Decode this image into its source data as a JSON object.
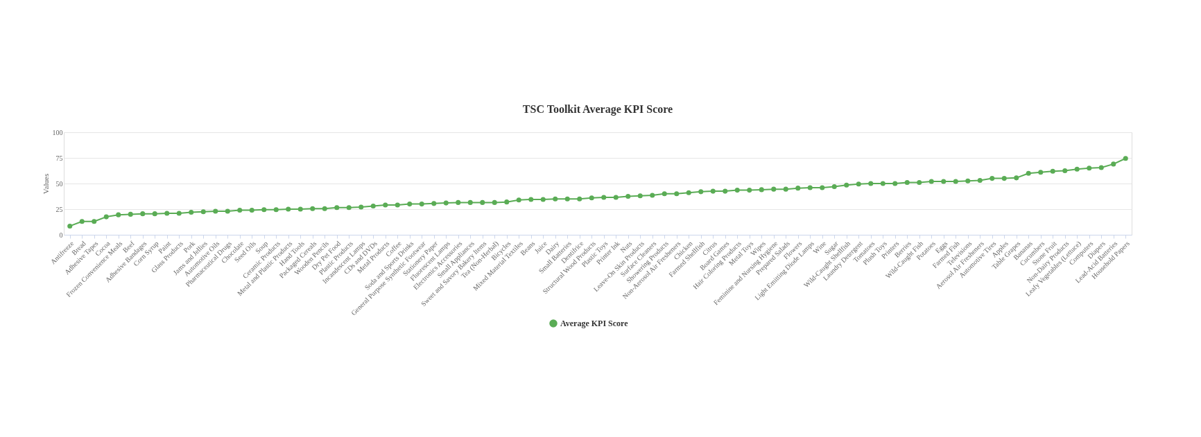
{
  "chart_data": {
    "type": "line",
    "title": "TSC Toolkit Average KPI Score",
    "ylabel": "Values",
    "categories": [
      "Antifreeze",
      "Bread",
      "Adhesive Tapes",
      "Cocoa",
      "Frozen Convenience Meals",
      "Beef",
      "Adhesive Bandages",
      "Corn Syrup",
      "Paint",
      "Glass Products",
      "Pork",
      "Jams and Jellies",
      "Automotive Oils",
      "Pharmaceutical Drugs",
      "Chocolate",
      "Seed Oils",
      "Soup",
      "Ceramic Products",
      "Metal and Plastic Products",
      "Hand Tools",
      "Packaged Cereals",
      "Wooden Pencils",
      "Dry Pet Food",
      "Plastic Products",
      "Incandescent Lamps",
      "CDs and DVDs",
      "Metal Products",
      "Coffee",
      "Soda and Sports Drinks",
      "General Purpose Synthetic Footwear",
      "Stationery Paper",
      "Fluorescent Lamps",
      "Electronics Accessories",
      "Small Appliances",
      "Sweet and Savory Bakery Items",
      "Tea (Non-Herbal)",
      "Bicycles",
      "Mixed Material Textiles",
      "Beans",
      "Juice",
      "Dairy",
      "Small Batteries",
      "Dentifrice",
      "Structural Wood Products",
      "Plastic Toys",
      "Printer Ink",
      "Nuts",
      "Leave-On Skin Products",
      "Surface Cleaners",
      "Showering Products",
      "Non-Aerosol Air Fresheners",
      "Chicken",
      "Farmed Shellfish",
      "Citrus",
      "Board Games",
      "Hair Coloring Products",
      "Metal Toys",
      "Wipes",
      "Feminine and Nursing Hygiene",
      "Prepared Salads",
      "Flowers",
      "Light Emitting Diode Lamps",
      "Wine",
      "Sugar",
      "Wild-Caught Shellfish",
      "Laundry Detergent",
      "Tomatoes",
      "Plush Toys",
      "Printers",
      "Berries",
      "Wild-Caught Fish",
      "Potatoes",
      "Eggs",
      "Farmed Fish",
      "Televisions",
      "Aerosol Air Fresheners",
      "Automotive Tires",
      "Apples",
      "Table Grapes",
      "Bananas",
      "Cucumbers",
      "Stone Fruit",
      "Non-Dairy Products",
      "Leafy Vegetables (Lettuce)",
      "Computers",
      "Diapers",
      "Lead-Acid Batteries",
      "Household Papers"
    ],
    "series": [
      {
        "name": "Average KPI Score",
        "color": "#5aac55",
        "values": [
          8.5,
          13,
          13,
          17.5,
          19.5,
          20,
          20.5,
          20.5,
          21,
          21,
          22,
          22.5,
          23,
          23,
          24,
          24,
          24.5,
          24.5,
          25,
          25,
          25.5,
          25.5,
          26.5,
          26.5,
          27,
          28,
          29,
          29,
          30,
          30,
          30.5,
          31,
          31.5,
          31.5,
          31.5,
          31.5,
          32,
          34,
          34.5,
          34.5,
          35,
          35,
          35,
          36,
          36.5,
          36.5,
          37.5,
          38,
          38.5,
          40,
          40,
          41,
          42,
          42.5,
          42.5,
          43.5,
          43.5,
          44,
          44.5,
          44.5,
          45.5,
          46,
          46,
          47,
          48.5,
          49.5,
          50,
          50,
          50,
          51,
          51,
          52,
          52,
          52,
          52.5,
          53,
          55,
          55,
          55.5,
          60,
          61,
          62,
          62.5,
          64,
          65,
          65.5,
          69,
          74.5
        ]
      }
    ],
    "ylim": [
      0,
      100
    ],
    "yticks": [
      0,
      25,
      50,
      75,
      100
    ],
    "grid": "y",
    "legend": "bottom",
    "marker": "circle",
    "line_style": "solid"
  }
}
